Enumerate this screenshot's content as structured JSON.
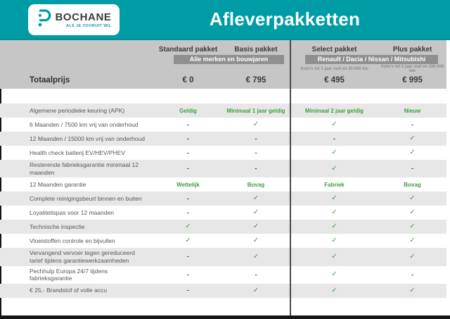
{
  "brand": {
    "name": "BOCHANE",
    "tagline": "ALS JE VOORUIT WIL"
  },
  "title": "Afleverpakketten",
  "packages": [
    {
      "name": "Standaard pakket",
      "price": "€ 0"
    },
    {
      "name": "Basis pakket",
      "price": "€ 795"
    },
    {
      "name": "Select pakket",
      "price": "€ 495",
      "caption": "Auto's tot 1 jaar oud en 20.000 km"
    },
    {
      "name": "Plus pakket",
      "price": "€ 995",
      "caption": "Auto's tot 5 jaar oud en 100.000 km"
    }
  ],
  "banners": {
    "left": "Alle merken en bouwjaren",
    "right": "Renault / Dacia / Nissan / Mitsubishi"
  },
  "total_label": "Totaalprijs",
  "icons": {
    "check": "✓",
    "dash": "-"
  },
  "colors": {
    "teal": "#009CA6",
    "green": "#3E9E3C",
    "band_gray": "#C6C6C6",
    "banner_gray": "#8F8F8F",
    "stripe_gray": "#E7E7E7",
    "bar_black": "#161616"
  },
  "rows": [
    {
      "label": "Algemene periodieke keuring (APK)",
      "values": [
        "Geldig",
        "Minimaal 1 jaar geldig",
        "Minimaal 2 jaar geldig",
        "Nieuw"
      ]
    },
    {
      "label": "6 Maanden / 7500 km vrij van onderhoud",
      "values": [
        "-",
        "check",
        "check",
        "-"
      ]
    },
    {
      "label": "12 Maanden / 15000 km vrij van onderhoud",
      "values": [
        "-",
        "-",
        "-",
        "check"
      ]
    },
    {
      "label": "Health check batterij EV/HEV/PHEV",
      "values": [
        "-",
        "-",
        "check",
        "check"
      ]
    },
    {
      "label": "Resterende fabrieksgarantie minimaal 12 maanden",
      "values": [
        "-",
        "-",
        "check",
        "-"
      ]
    },
    {
      "label": "12 Maanden  garantie",
      "values": [
        "Wettelijk",
        "Bovag",
        "Fabriek",
        "Bovag"
      ]
    },
    {
      "label": "Complete reinigingsbeurt binnen en buiten",
      "values": [
        "-",
        "check",
        "check",
        "check"
      ]
    },
    {
      "label": "Loyaliteitspas voor 12 maanden",
      "values": [
        "-",
        "check",
        "check",
        "check"
      ]
    },
    {
      "label": "Technische inspectie",
      "values": [
        "check",
        "check",
        "check",
        "check"
      ]
    },
    {
      "label": "Vloeistoffen controle en bijvullen",
      "values": [
        "check",
        "check",
        "check",
        "check"
      ]
    },
    {
      "label": "Vervangend vervoer tegen gereduceerd tarief tijdens garantiewerkzaamheden",
      "values": [
        "-",
        "check",
        "check",
        "check"
      ]
    },
    {
      "label": "Pechhulp Europa 24/7 tijdens fabrieksgarantie",
      "values": [
        "-",
        "-",
        "check",
        "-"
      ]
    },
    {
      "label": "€ 25,- Brandstof of  volle accu",
      "values": [
        "-",
        "check",
        "check",
        "check"
      ]
    }
  ]
}
